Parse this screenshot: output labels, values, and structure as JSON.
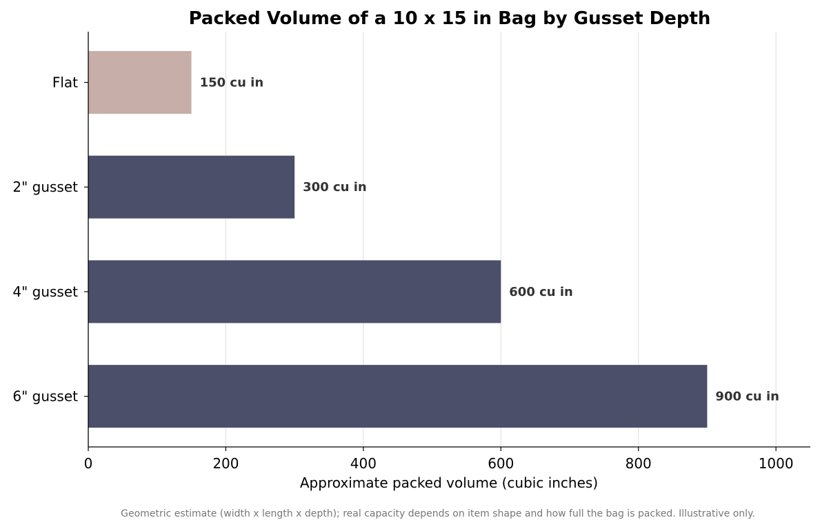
{
  "chart_data": {
    "type": "bar",
    "orientation": "horizontal",
    "title": "Packed Volume of a 10 x 15 in Bag by Gusset Depth",
    "xlabel": "Approximate packed volume (cubic inches)",
    "ylabel": "",
    "categories": [
      "Flat",
      "2\" gusset",
      "4\" gusset",
      "6\" gusset"
    ],
    "values": [
      150,
      300,
      600,
      900
    ],
    "value_labels": [
      "150 cu in",
      "300 cu in",
      "600 cu in",
      "900 cu in"
    ],
    "xlim": [
      0,
      1050
    ],
    "xticks": [
      0,
      200,
      400,
      600,
      800,
      1000
    ],
    "xtick_labels": [
      "0",
      "200",
      "400",
      "600",
      "800",
      "1000"
    ],
    "grid": "vertical",
    "colors": {
      "highlight": "#c8aea8",
      "bar": "#4b4f6a",
      "grid": "#dddddd",
      "axis": "#000000"
    },
    "highlight_index": 0,
    "footnote": "Geometric estimate (width x length x depth); real capacity depends on item shape and how full the bag is packed. Illustrative only."
  }
}
